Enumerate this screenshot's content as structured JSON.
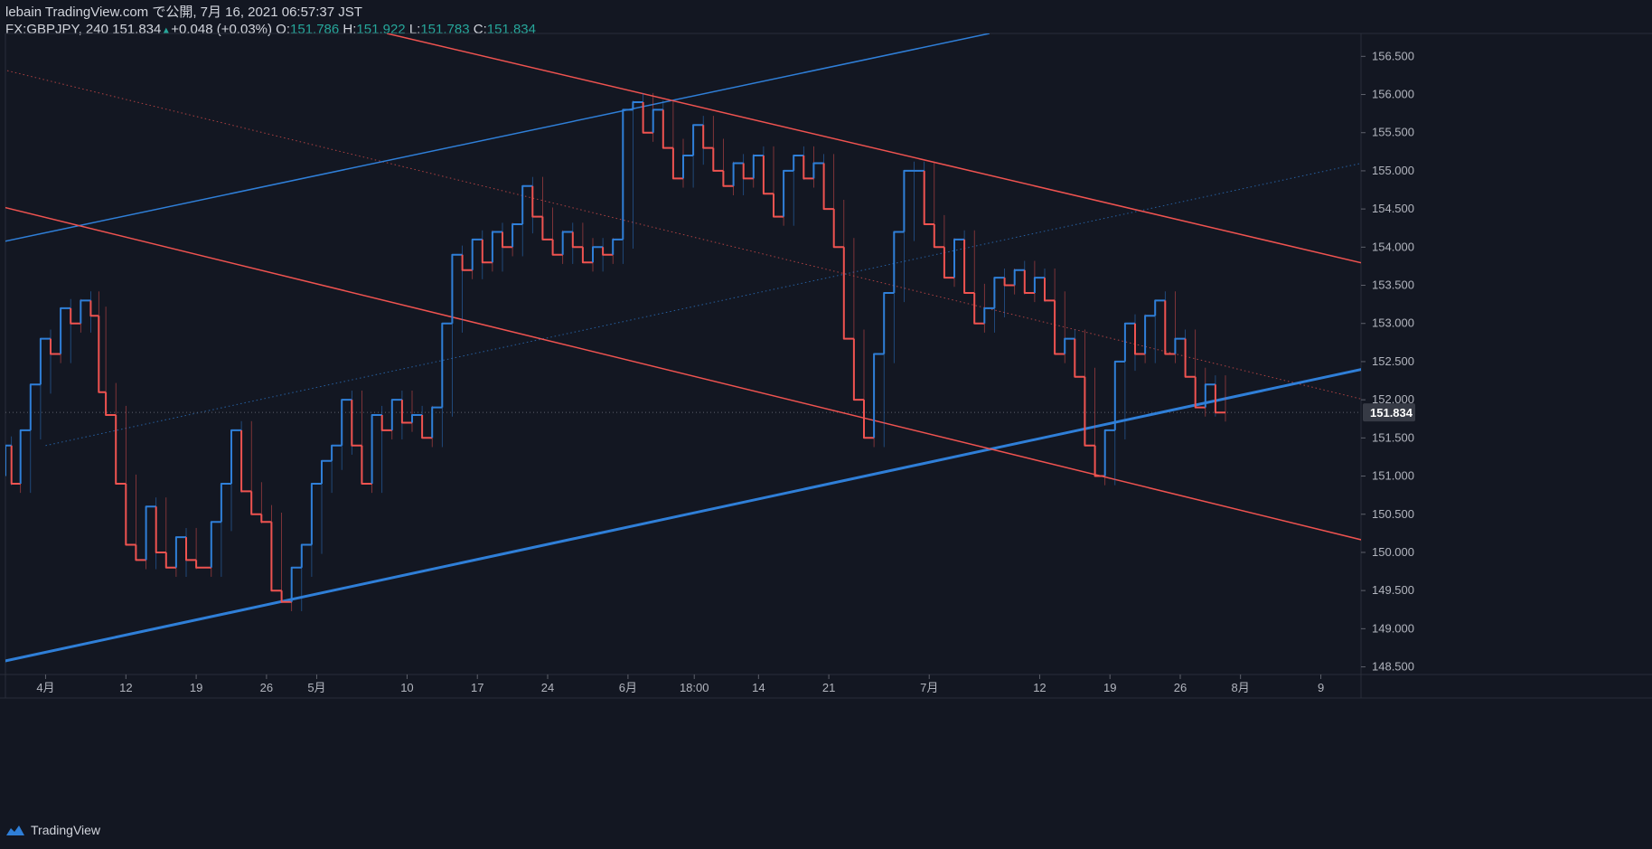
{
  "header": {
    "line1": "lebain TradingView.com で公開, 7月 16, 2021 06:57:37 JST",
    "symbol": "FX:GBPJPY, 240",
    "last": "151.834",
    "change": "+0.048 (+0.03%)",
    "o_label": "O:",
    "o": "151.786",
    "h_label": "H:",
    "h": "151.922",
    "l_label": "L:",
    "l": "151.783",
    "c_label": "C:",
    "c": "151.834"
  },
  "footer": {
    "brand": "TradingView"
  },
  "colors": {
    "background": "#131722",
    "up": "#2f7fd8",
    "down": "#ef5350",
    "blue_line": "#2f7fd8",
    "red_line": "#ef5350",
    "axis_text": "#b2b5be",
    "price_label_bg": "#363a45"
  },
  "chart_data": {
    "type": "candlestick",
    "symbol": "FX:GBPJPY",
    "interval": "240",
    "ylim": [
      148.4,
      156.8
    ],
    "y_ticks": [
      156.5,
      156.0,
      155.5,
      155.0,
      154.5,
      154.0,
      153.5,
      153.0,
      152.5,
      152.0,
      151.5,
      151.0,
      150.5,
      150.0,
      149.5,
      149.0,
      148.5
    ],
    "y_tick_labels": [
      "156.500",
      "156.000",
      "155.500",
      "155.000",
      "154.500",
      "154.000",
      "153.500",
      "153.000",
      "152.500",
      "152.000",
      "151.500",
      "151.000",
      "150.500",
      "150.000",
      "149.500",
      "149.000",
      "148.500"
    ],
    "x_ticks": [
      {
        "label": "4月",
        "day": 4
      },
      {
        "label": "12",
        "day": 12
      },
      {
        "label": "19",
        "day": 19
      },
      {
        "label": "26",
        "day": 26
      },
      {
        "label": "5月",
        "day": 31
      },
      {
        "label": "10",
        "day": 40
      },
      {
        "label": "17",
        "day": 47
      },
      {
        "label": "24",
        "day": 54
      },
      {
        "label": "6月",
        "day": 62
      },
      {
        "label": "18:00",
        "day": 68.6
      },
      {
        "label": "14",
        "day": 75
      },
      {
        "label": "21",
        "day": 82
      },
      {
        "label": "7月",
        "day": 92
      },
      {
        "label": "12",
        "day": 103
      },
      {
        "label": "19",
        "day": 110
      },
      {
        "label": "26",
        "day": 117
      },
      {
        "label": "8月",
        "day": 123
      },
      {
        "label": "9",
        "day": 131
      }
    ],
    "x_range_days": [
      0,
      135
    ],
    "current_price": 151.834,
    "current_price_label": "151.834",
    "path_points": [
      [
        0,
        151.0
      ],
      [
        0.6,
        151.4
      ],
      [
        1.5,
        150.9
      ],
      [
        2.5,
        151.6
      ],
      [
        3.5,
        152.2
      ],
      [
        4.5,
        152.8
      ],
      [
        5.5,
        152.6
      ],
      [
        6.5,
        153.2
      ],
      [
        7.5,
        153.0
      ],
      [
        8.5,
        153.3
      ],
      [
        9.3,
        153.1
      ],
      [
        10.0,
        152.1
      ],
      [
        11.0,
        151.8
      ],
      [
        12.0,
        150.9
      ],
      [
        13.0,
        150.1
      ],
      [
        14.0,
        149.9
      ],
      [
        15.0,
        150.6
      ],
      [
        16.0,
        150.0
      ],
      [
        17.0,
        149.8
      ],
      [
        18.0,
        150.2
      ],
      [
        19.0,
        149.9
      ],
      [
        20.5,
        149.8
      ],
      [
        21.5,
        150.4
      ],
      [
        22.5,
        150.9
      ],
      [
        23.5,
        151.6
      ],
      [
        24.5,
        150.8
      ],
      [
        25.5,
        150.5
      ],
      [
        26.5,
        150.4
      ],
      [
        27.5,
        149.5
      ],
      [
        28.5,
        149.35
      ],
      [
        29.5,
        149.8
      ],
      [
        30.5,
        150.1
      ],
      [
        31.5,
        150.9
      ],
      [
        32.5,
        151.2
      ],
      [
        33.5,
        151.4
      ],
      [
        34.5,
        152.0
      ],
      [
        35.5,
        151.4
      ],
      [
        36.5,
        150.9
      ],
      [
        37.5,
        151.8
      ],
      [
        38.5,
        151.6
      ],
      [
        39.5,
        152.0
      ],
      [
        40.5,
        151.7
      ],
      [
        41.5,
        151.8
      ],
      [
        42.5,
        151.5
      ],
      [
        43.5,
        151.9
      ],
      [
        44.5,
        153.0
      ],
      [
        45.5,
        153.9
      ],
      [
        46.5,
        153.7
      ],
      [
        47.5,
        154.1
      ],
      [
        48.5,
        153.8
      ],
      [
        49.5,
        154.2
      ],
      [
        50.5,
        154.0
      ],
      [
        51.5,
        154.3
      ],
      [
        52.5,
        154.8
      ],
      [
        53.5,
        154.4
      ],
      [
        54.5,
        154.1
      ],
      [
        55.5,
        153.9
      ],
      [
        56.5,
        154.2
      ],
      [
        57.5,
        154.0
      ],
      [
        58.5,
        153.8
      ],
      [
        59.5,
        154.0
      ],
      [
        60.5,
        153.9
      ],
      [
        61.5,
        154.1
      ],
      [
        62.5,
        155.8
      ],
      [
        63.5,
        155.9
      ],
      [
        64.5,
        155.5
      ],
      [
        65.5,
        155.8
      ],
      [
        66.5,
        155.3
      ],
      [
        67.5,
        154.9
      ],
      [
        68.5,
        155.2
      ],
      [
        69.5,
        155.6
      ],
      [
        70.5,
        155.3
      ],
      [
        71.5,
        155.0
      ],
      [
        72.5,
        154.8
      ],
      [
        73.5,
        155.1
      ],
      [
        74.5,
        154.9
      ],
      [
        75.5,
        155.2
      ],
      [
        76.5,
        154.7
      ],
      [
        77.5,
        154.4
      ],
      [
        78.5,
        155.0
      ],
      [
        79.5,
        155.2
      ],
      [
        80.5,
        154.9
      ],
      [
        81.5,
        155.1
      ],
      [
        82.5,
        154.5
      ],
      [
        83.5,
        154.0
      ],
      [
        84.5,
        152.8
      ],
      [
        85.5,
        152.0
      ],
      [
        86.5,
        151.5
      ],
      [
        87.5,
        152.6
      ],
      [
        88.5,
        153.4
      ],
      [
        89.5,
        154.2
      ],
      [
        90.5,
        155.0
      ],
      [
        91.5,
        155.0
      ],
      [
        92.5,
        154.3
      ],
      [
        93.5,
        154.0
      ],
      [
        94.5,
        153.6
      ],
      [
        95.5,
        154.1
      ],
      [
        96.5,
        153.4
      ],
      [
        97.5,
        153.0
      ],
      [
        98.5,
        153.2
      ],
      [
        99.5,
        153.6
      ],
      [
        100.5,
        153.5
      ],
      [
        101.5,
        153.7
      ],
      [
        102.5,
        153.4
      ],
      [
        103.5,
        153.6
      ],
      [
        104.5,
        153.3
      ],
      [
        105.5,
        152.6
      ],
      [
        106.5,
        152.8
      ],
      [
        107.5,
        152.3
      ],
      [
        108.5,
        151.4
      ],
      [
        109.5,
        151.0
      ],
      [
        110.5,
        151.6
      ],
      [
        111.5,
        152.5
      ],
      [
        112.5,
        153.0
      ],
      [
        113.5,
        152.6
      ],
      [
        114.5,
        153.1
      ],
      [
        115.5,
        153.3
      ],
      [
        116.5,
        152.6
      ],
      [
        117.5,
        152.8
      ],
      [
        118.5,
        152.3
      ],
      [
        119.5,
        151.9
      ],
      [
        120.5,
        152.2
      ],
      [
        121.5,
        151.834
      ]
    ],
    "trendlines": [
      {
        "name": "blue-thin-upper",
        "color": "blue",
        "width": 1.5,
        "p1": [
          -1,
          154.05
        ],
        "p2": [
          98,
          156.8
        ]
      },
      {
        "name": "blue-thick-support",
        "color": "blue",
        "width": 3,
        "p1": [
          -1,
          148.55
        ],
        "p2": [
          151,
          152.85
        ]
      },
      {
        "name": "red-upper",
        "color": "red",
        "width": 1.5,
        "p1": [
          38,
          156.8
        ],
        "p2": [
          151,
          153.3
        ]
      },
      {
        "name": "red-lower",
        "color": "red",
        "width": 1.5,
        "p1": [
          -1,
          154.55
        ],
        "p2": [
          151,
          149.65
        ]
      }
    ],
    "dotted_lines": [
      {
        "name": "red-dotted-mid",
        "color": "red",
        "p1": [
          -1,
          156.35
        ],
        "p2": [
          151,
          151.5
        ]
      },
      {
        "name": "blue-dotted-mid",
        "color": "blue",
        "p1": [
          4,
          151.4
        ],
        "p2": [
          151,
          155.55
        ]
      }
    ]
  }
}
